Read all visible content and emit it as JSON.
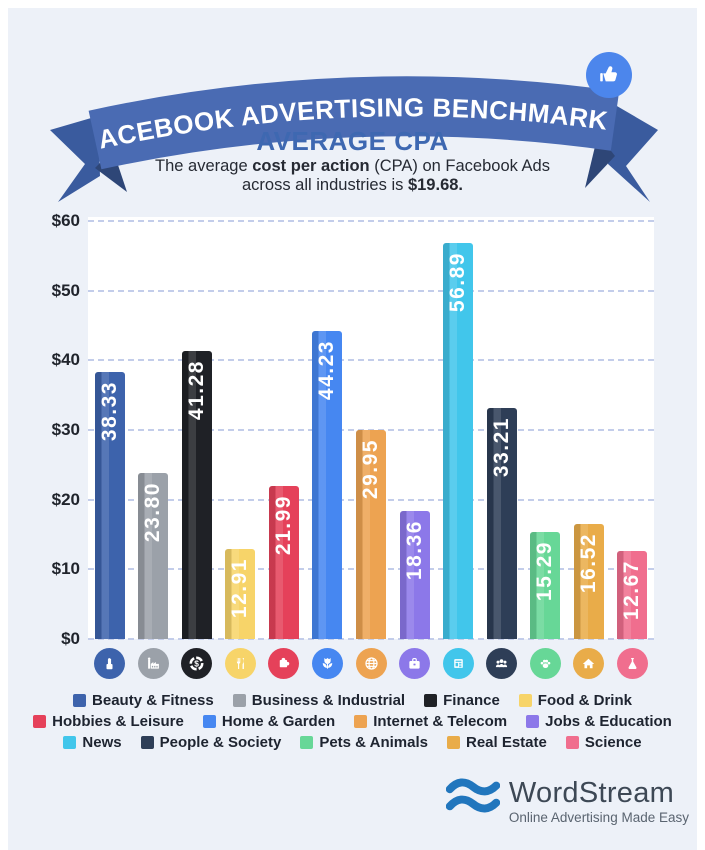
{
  "banner": {
    "title": "FACEBOOK ADVERTISING BENCHMARKS",
    "like_icon": "thumbs-up-icon",
    "ribbon_color": "#4a6bb3",
    "ribbon_tail_color": "#3a5b9e",
    "ribbon_fold_color": "#2e4677",
    "like_circle_color": "#4c86ec"
  },
  "header": {
    "title": "AVERAGE CPA",
    "subtitle_line1_part1": "The average ",
    "subtitle_line1_bold": "cost per action",
    "subtitle_line1_part2": " (CPA) on Facebook Ads",
    "subtitle_line2_part1": "across all industries is ",
    "subtitle_line2_bold": "$19.68."
  },
  "chart_data": {
    "type": "bar",
    "title": "Average CPA",
    "categories": [
      "Beauty & Fitness",
      "Business & Industrial",
      "Finance",
      "Food & Drink",
      "Hobbies & Leisure",
      "Home & Garden",
      "Internet & Telecom",
      "Jobs & Education",
      "News",
      "People & Society",
      "Pets & Animals",
      "Real Estate",
      "Science"
    ],
    "values": [
      38.33,
      23.8,
      41.28,
      12.91,
      21.99,
      44.23,
      29.95,
      18.36,
      56.89,
      33.21,
      15.29,
      16.52,
      12.67
    ],
    "value_labels": [
      "38.33",
      "23.80",
      "41.28",
      "12.91",
      "21.99",
      "44.23",
      "29.95",
      "18.36",
      "56.89",
      "33.21",
      "15.29",
      "16.52",
      "12.67"
    ],
    "colors": [
      "#3d63ac",
      "#9ba1a9",
      "#1f2126",
      "#f7d469",
      "#e5415a",
      "#4687f1",
      "#eda351",
      "#8c78e9",
      "#41c6eb",
      "#2e3e57",
      "#67d797",
      "#e9ac49",
      "#f06e8e"
    ],
    "icons": [
      "lipstick-icon",
      "factory-icon",
      "dollar-donut-icon",
      "fork-knife-icon",
      "puzzle-icon",
      "tulip-icon",
      "globe-icon",
      "briefcase-icon",
      "newspaper-icon",
      "people-icon",
      "paw-icon",
      "house-icon",
      "flask-icon"
    ],
    "xlabel": "",
    "ylabel": "",
    "ylim": [
      0,
      60
    ],
    "yticks": [
      "$60",
      "$50",
      "$40",
      "$30",
      "$20",
      "$10",
      "$0"
    ],
    "grid": true,
    "gridline_style": "dashed",
    "legend_position": "bottom",
    "value_label_style": "white rotated 90deg inside bar top"
  },
  "footer": {
    "brand": "WordStream",
    "tagline": "Online Advertising Made Easy",
    "logo": "waves-icon",
    "logo_color": "#2176bd"
  }
}
